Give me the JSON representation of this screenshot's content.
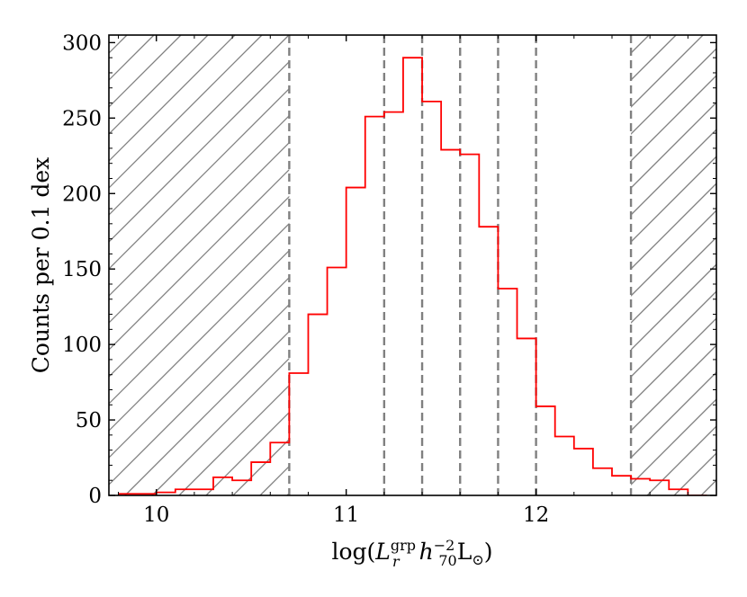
{
  "chart_data": {
    "type": "histogram",
    "title": "",
    "xlabel": "log(L_r^grp h_70^-2 L_⊙)",
    "ylabel": "Counts per 0.1 dex",
    "xlim": [
      9.75,
      12.95
    ],
    "ylim": [
      0,
      305
    ],
    "xticks": [
      10,
      11,
      12
    ],
    "yticks": [
      0,
      50,
      100,
      150,
      200,
      250,
      300
    ],
    "grid": false,
    "legend": "none",
    "series": [
      {
        "color": "#ff0000",
        "bin_width": 0.1,
        "bin_edges": [
          9.8,
          9.9,
          10.0,
          10.1,
          10.2,
          10.3,
          10.4,
          10.5,
          10.6,
          10.7,
          10.8,
          10.9,
          11.0,
          11.1,
          11.2,
          11.3,
          11.4,
          11.5,
          11.6,
          11.7,
          11.8,
          11.9,
          12.0,
          12.1,
          12.2,
          12.3,
          12.4,
          12.5,
          12.6,
          12.7,
          12.8,
          12.9
        ],
        "counts": [
          1,
          1,
          2,
          4,
          4,
          12,
          10,
          22,
          35,
          81,
          120,
          151,
          204,
          251,
          254,
          290,
          261,
          229,
          226,
          178,
          137,
          104,
          59,
          39,
          31,
          18,
          13,
          11,
          10,
          4,
          0
        ]
      }
    ],
    "vlines": {
      "color": "#808080",
      "style": "dashed",
      "x": [
        10.7,
        11.2,
        11.4,
        11.6,
        11.8,
        12.0,
        12.5
      ]
    },
    "hatched_regions": [
      {
        "x_range": [
          9.75,
          10.7
        ],
        "pattern": "diagonal",
        "color": "#808080"
      },
      {
        "x_range": [
          12.5,
          12.95
        ],
        "pattern": "diagonal",
        "color": "#808080"
      }
    ]
  }
}
